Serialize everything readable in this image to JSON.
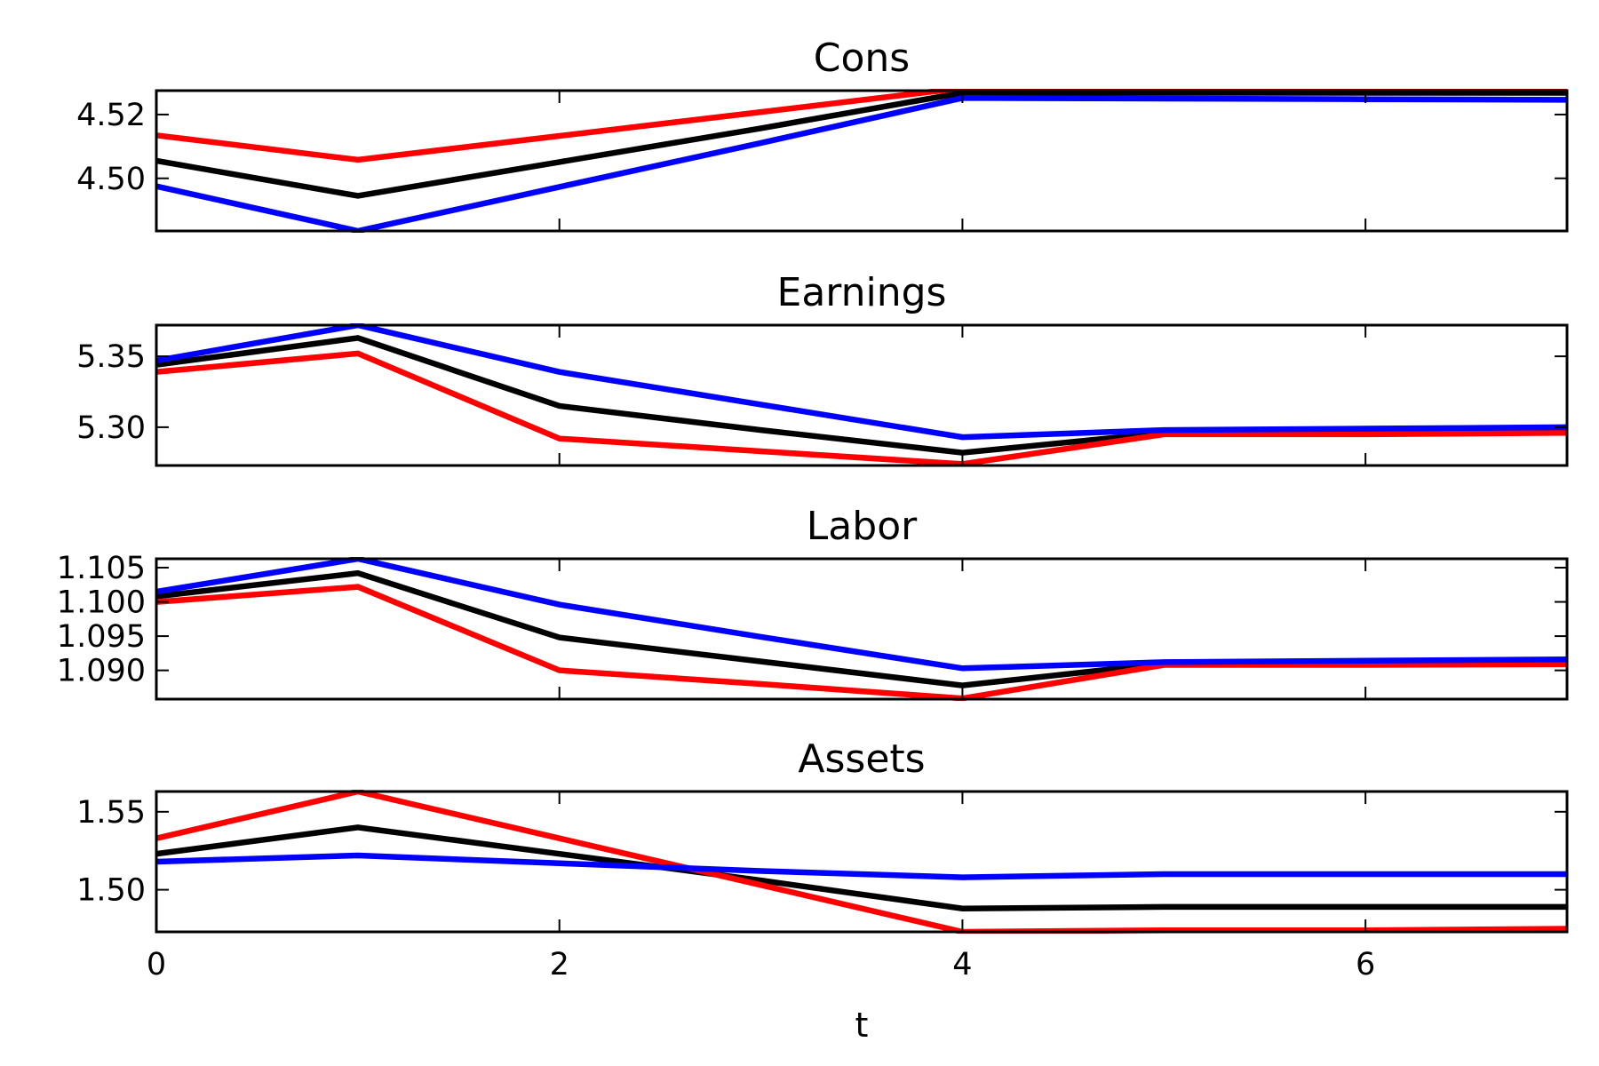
{
  "colors": {
    "black": "#000000",
    "red": "#ff0000",
    "blue": "#0000ff"
  },
  "shared_x": {
    "label": "t",
    "lim": [
      0,
      7
    ],
    "ticks": [
      0,
      2,
      4,
      6
    ],
    "tick_labels": [
      "0",
      "2",
      "4",
      "6"
    ]
  },
  "chart_data": [
    {
      "type": "line",
      "title": "Cons",
      "xlabel": "",
      "ylabel": "",
      "x": [
        0,
        1,
        2,
        3,
        4,
        5,
        6,
        7
      ],
      "xlim": [
        0,
        7
      ],
      "ylim": [
        4.4835,
        4.5275
      ],
      "yticks": [
        4.5,
        4.52
      ],
      "ytick_labels": [
        "4.50",
        "4.52"
      ],
      "grid": false,
      "series": [
        {
          "color": "black",
          "values": [
            4.5055,
            4.4945,
            4.5051,
            4.5157,
            4.5268,
            4.5268,
            4.5268,
            4.5268
          ]
        },
        {
          "color": "red",
          "values": [
            4.5135,
            4.5058,
            4.5133,
            4.5208,
            4.5283,
            4.5283,
            4.5283,
            4.5283
          ]
        },
        {
          "color": "blue",
          "values": [
            4.4975,
            4.4835,
            4.4973,
            4.5111,
            4.5252,
            4.525,
            4.5248,
            4.5246
          ]
        }
      ]
    },
    {
      "type": "line",
      "title": "Earnings",
      "xlabel": "",
      "ylabel": "",
      "x": [
        0,
        1,
        2,
        3,
        4,
        5,
        6,
        7
      ],
      "xlim": [
        0,
        7
      ],
      "ylim": [
        5.273,
        5.372
      ],
      "yticks": [
        5.3,
        5.35
      ],
      "ytick_labels": [
        "5.30",
        "5.35"
      ],
      "grid": false,
      "series": [
        {
          "color": "black",
          "values": [
            5.344,
            5.363,
            5.315,
            5.298,
            5.282,
            5.296,
            5.297,
            5.298
          ]
        },
        {
          "color": "red",
          "values": [
            5.339,
            5.352,
            5.292,
            5.283,
            5.274,
            5.295,
            5.295,
            5.296
          ]
        },
        {
          "color": "blue",
          "values": [
            5.347,
            5.372,
            5.339,
            5.316,
            5.293,
            5.298,
            5.299,
            5.3
          ]
        }
      ]
    },
    {
      "type": "line",
      "title": "Labor",
      "xlabel": "",
      "ylabel": "",
      "x": [
        0,
        1,
        2,
        3,
        4,
        5,
        6,
        7
      ],
      "xlim": [
        0,
        7
      ],
      "ylim": [
        1.0858,
        1.1063
      ],
      "yticks": [
        1.09,
        1.095,
        1.1,
        1.105
      ],
      "ytick_labels": [
        "1.090",
        "1.095",
        "1.100",
        "1.105"
      ],
      "grid": false,
      "series": [
        {
          "color": "black",
          "values": [
            1.1008,
            1.1042,
            1.0948,
            1.0913,
            1.0878,
            1.091,
            1.0911,
            1.0912
          ]
        },
        {
          "color": "red",
          "values": [
            1.1,
            1.1022,
            1.09,
            1.088,
            1.0859,
            1.0908,
            1.0908,
            1.0909
          ]
        },
        {
          "color": "blue",
          "values": [
            1.1015,
            1.1063,
            1.0996,
            1.0949,
            1.0903,
            1.0912,
            1.0914,
            1.0916
          ]
        }
      ]
    },
    {
      "type": "line",
      "title": "Assets",
      "xlabel": "t",
      "ylabel": "",
      "x": [
        0,
        1,
        2,
        3,
        4,
        5,
        6,
        7
      ],
      "xlim": [
        0,
        7
      ],
      "ylim": [
        1.473,
        1.563
      ],
      "yticks": [
        1.5,
        1.55
      ],
      "ytick_labels": [
        "1.50",
        "1.55"
      ],
      "grid": false,
      "series": [
        {
          "color": "black",
          "values": [
            1.523,
            1.54,
            1.523,
            1.506,
            1.488,
            1.489,
            1.489,
            1.489
          ]
        },
        {
          "color": "red",
          "values": [
            1.533,
            1.563,
            1.533,
            1.503,
            1.473,
            1.474,
            1.474,
            1.475
          ]
        },
        {
          "color": "blue",
          "values": [
            1.518,
            1.522,
            1.517,
            1.512,
            1.508,
            1.51,
            1.51,
            1.51
          ]
        }
      ]
    }
  ]
}
